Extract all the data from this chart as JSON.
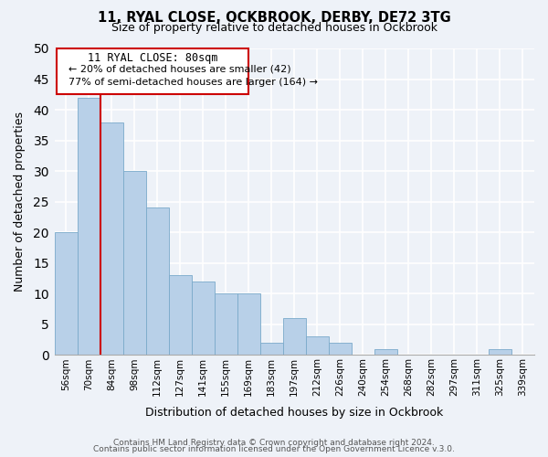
{
  "title": "11, RYAL CLOSE, OCKBROOK, DERBY, DE72 3TG",
  "subtitle": "Size of property relative to detached houses in Ockbrook",
  "xlabel": "Distribution of detached houses by size in Ockbrook",
  "ylabel": "Number of detached properties",
  "bin_labels": [
    "56sqm",
    "70sqm",
    "84sqm",
    "98sqm",
    "112sqm",
    "127sqm",
    "141sqm",
    "155sqm",
    "169sqm",
    "183sqm",
    "197sqm",
    "212sqm",
    "226sqm",
    "240sqm",
    "254sqm",
    "268sqm",
    "282sqm",
    "297sqm",
    "311sqm",
    "325sqm",
    "339sqm"
  ],
  "bar_values": [
    20,
    42,
    38,
    30,
    24,
    13,
    12,
    10,
    10,
    2,
    6,
    3,
    2,
    0,
    1,
    0,
    0,
    0,
    0,
    1,
    0
  ],
  "bar_color": "#b8d0e8",
  "bar_edge_color": "#7aaaca",
  "marker_label": "11 RYAL CLOSE: 80sqm",
  "annotation_line1": "← 20% of detached houses are smaller (42)",
  "annotation_line2": "77% of semi-detached houses are larger (164) →",
  "marker_color": "#cc0000",
  "ylim": [
    0,
    50
  ],
  "yticks": [
    0,
    5,
    10,
    15,
    20,
    25,
    30,
    35,
    40,
    45,
    50
  ],
  "footer_line1": "Contains HM Land Registry data © Crown copyright and database right 2024.",
  "footer_line2": "Contains public sector information licensed under the Open Government Licence v.3.0.",
  "bg_color": "#eef2f8",
  "grid_color": "#ffffff",
  "title_fontsize": 10.5,
  "subtitle_fontsize": 9,
  "axis_label_fontsize": 9,
  "tick_fontsize": 7.5,
  "annotation_title_fontsize": 8.5,
  "annotation_text_fontsize": 8,
  "footer_fontsize": 6.5
}
